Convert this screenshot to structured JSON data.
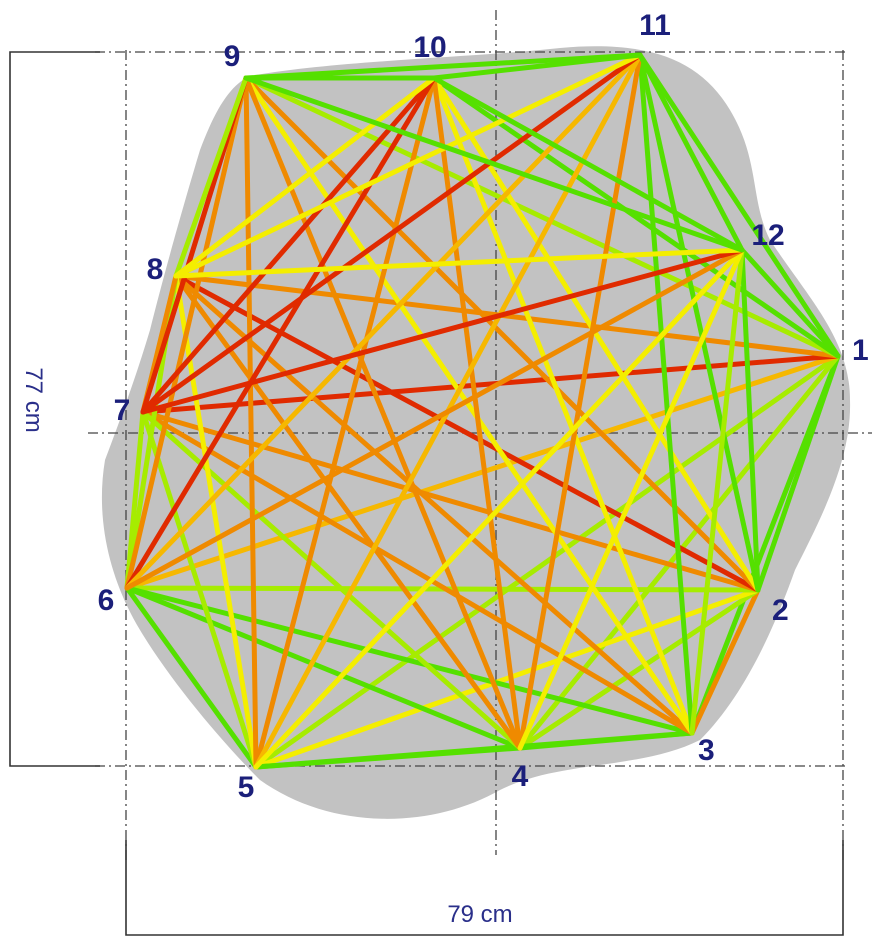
{
  "diagram": {
    "nodes": [
      "1",
      "2",
      "3",
      "4",
      "5",
      "6",
      "7",
      "8",
      "9",
      "10",
      "11",
      "12"
    ],
    "dimensions": {
      "width_label": "79 cm",
      "height_label": "77 cm"
    },
    "colors": {
      "region": "#c2c2c2",
      "green": "#55e000",
      "lime": "#a6ec00",
      "yellow": "#f4ee00",
      "orange_yellow": "#f6b800",
      "orange": "#ef8a00",
      "red": "#e02a00",
      "label": "#1b1f7a"
    }
  }
}
